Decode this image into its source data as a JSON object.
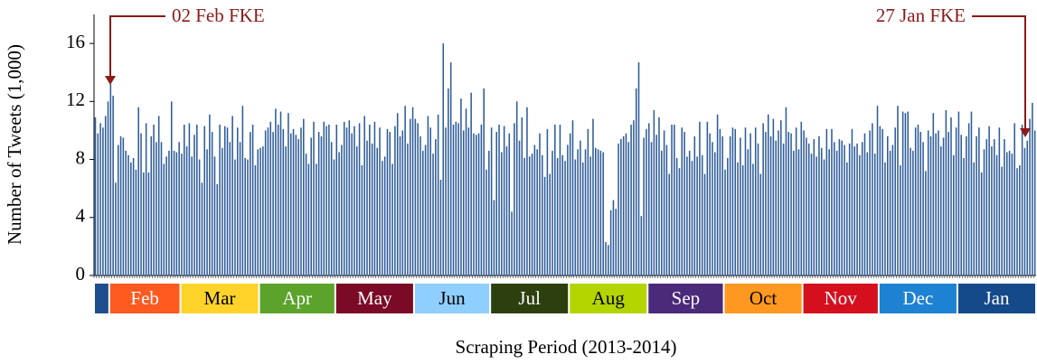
{
  "chart_data": {
    "type": "bar",
    "y_label": "Number of Tweets (1,000)",
    "x_label": "Scraping Period (2013-2014)",
    "color": "#2e5c9a",
    "ylim": [
      0,
      18
    ],
    "yticks": [
      0,
      4,
      8,
      12,
      16
    ],
    "months": [
      {
        "label": null,
        "color": "#1f4e8c"
      },
      {
        "label": "Feb",
        "color": "#ff5a1f"
      },
      {
        "label": "Mar",
        "color": "#ffd32a"
      },
      {
        "label": "Apr",
        "color": "#5ba32a"
      },
      {
        "label": "May",
        "color": "#7a0a25"
      },
      {
        "label": "Jun",
        "color": "#8fcfff"
      },
      {
        "label": "Jul",
        "color": "#2e3f0f"
      },
      {
        "label": "Aug",
        "color": "#b5d500"
      },
      {
        "label": "Sep",
        "color": "#4b2a7a"
      },
      {
        "label": "Oct",
        "color": "#ff9820"
      },
      {
        "label": "Nov",
        "color": "#d4101f"
      },
      {
        "label": "Dec",
        "color": "#1e82d2"
      },
      {
        "label": "Jan",
        "color": "#154a8a"
      }
    ],
    "annotations": [
      {
        "text": "02 Feb FKE",
        "color": "#8b1a1a"
      },
      {
        "text": "27 Jan FKE",
        "color": "#8b1a1a"
      }
    ],
    "values": [
      10.9,
      9.8,
      10.5,
      10.2,
      11.0,
      12.0,
      13.2,
      12.4,
      6.4,
      9.0,
      9.6,
      9.5,
      8.6,
      8.3,
      7.8,
      8.1,
      7.3,
      11.6,
      9.8,
      7.1,
      10.5,
      7.1,
      9.6,
      10.4,
      9.2,
      11.0,
      9.2,
      7.7,
      8.2,
      8.6,
      12.0,
      8.6,
      8.5,
      9.2,
      8.4,
      10.4,
      8.9,
      10.5,
      8.2,
      9.7,
      10.4,
      8.0,
      6.4,
      10.3,
      8.7,
      11.1,
      9.9,
      8.2,
      6.3,
      10.4,
      8.8,
      10.3,
      10.2,
      9.2,
      11.0,
      8.0,
      10.2,
      9.2,
      11.7,
      8.1,
      8.0,
      9.9,
      10.4,
      7.6,
      8.7,
      8.8,
      8.9,
      10.0,
      10.2,
      10.6,
      9.9,
      11.5,
      10.4,
      11.3,
      10.1,
      8.9,
      11.2,
      9.8,
      10.1,
      9.7,
      9.4,
      10.2,
      10.8,
      8.4,
      7.7,
      9.5,
      10.6,
      7.7,
      9.9,
      9.6,
      10.6,
      10.3,
      10.4,
      9.2,
      8.0,
      10.4,
      8.5,
      9.0,
      10.6,
      10.2,
      10.7,
      9.8,
      10.3,
      8.9,
      10.5,
      7.6,
      11.0,
      9.3,
      10.4,
      9.1,
      10.6,
      8.8,
      10.2,
      7.9,
      8.2,
      10.1,
      9.9,
      7.7,
      10.3,
      11.2,
      9.6,
      10.0,
      11.7,
      9.1,
      10.8,
      11.6,
      10.8,
      10.5,
      9.6,
      8.6,
      9.0,
      11.0,
      10.2,
      8.4,
      9.4,
      11.1,
      6.6,
      16.0,
      10.2,
      12.9,
      14.7,
      10.4,
      10.6,
      10.5,
      12.2,
      10.0,
      11.5,
      10.2,
      12.6,
      9.8,
      9.7,
      9.8,
      10.4,
      12.9,
      7.3,
      8.6,
      10.2,
      5.2,
      9.9,
      10.4,
      8.5,
      10.3,
      8.9,
      9.8,
      4.4,
      10.5,
      12.0,
      9.3,
      10.9,
      8.1,
      11.6,
      8.2,
      8.4,
      9.0,
      8.7,
      9.8,
      8.3,
      6.8,
      10.1,
      7.0,
      8.6,
      10.4,
      8.1,
      10.4,
      8.3,
      7.9,
      9.0,
      9.8,
      10.7,
      8.0,
      8.7,
      9.3,
      7.8,
      8.7,
      10.1,
      8.2,
      10.8,
      8.8,
      8.7,
      8.6,
      8.5,
      2.3,
      2.1,
      4.5,
      5.2,
      4.6,
      9.1,
      9.4,
      9.6,
      9.8,
      9.2,
      10.4,
      10.7,
      12.9,
      14.7,
      4.1,
      9.5,
      10.1,
      10.5,
      9.2,
      11.4,
      9.7,
      10.9,
      8.6,
      10.0,
      9.0,
      7.0,
      10.4,
      10.4,
      8.1,
      7.4,
      10.2,
      9.9,
      8.2,
      8.6,
      7.9,
      9.6,
      8.2,
      10.6,
      8.3,
      7.0,
      10.6,
      9.8,
      9.2,
      8.5,
      11.1,
      10.1,
      9.6,
      7.3,
      8.1,
      9.6,
      10.2,
      10.1,
      7.8,
      9.5,
      7.6,
      10.2,
      8.7,
      9.8,
      7.7,
      10.2,
      9.1,
      7.0,
      10.5,
      9.9,
      11.1,
      9.6,
      10.8,
      9.3,
      10.0,
      10.7,
      9.1,
      11.6,
      9.9,
      9.8,
      8.6,
      10.2,
      8.7,
      10.6,
      10.0,
      9.5,
      9.1,
      8.4,
      9.4,
      8.2,
      9.6,
      8.8,
      8.0,
      10.1,
      8.7,
      10.1,
      9.2,
      8.6,
      9.4,
      9.3,
      9.0,
      7.8,
      9.1,
      10.1,
      8.9,
      9.1,
      8.3,
      9.2,
      9.8,
      8.5,
      10.0,
      10.5,
      8.4,
      11.7,
      10.3,
      10.1,
      7.8,
      9.6,
      8.6,
      9.0,
      10.2,
      11.7,
      7.6,
      11.3,
      11.2,
      11.3,
      8.8,
      8.6,
      10.2,
      10.4,
      9.9,
      9.2,
      7.2,
      10.0,
      9.6,
      11.2,
      9.8,
      10.0,
      8.9,
      9.5,
      11.4,
      9.9,
      10.9,
      8.3,
      10.2,
      11.3,
      9.7,
      8.1,
      9.6,
      10.5,
      11.3,
      7.8,
      9.6,
      10.2,
      7.1,
      8.7,
      9.4,
      10.3,
      8.9,
      9.4,
      8.3,
      10.2,
      7.5,
      9.4,
      8.5,
      8.6,
      8.4,
      10.5,
      7.4,
      7.6,
      10.4,
      8.8,
      9.3,
      10.8,
      11.9,
      10.0
    ]
  }
}
